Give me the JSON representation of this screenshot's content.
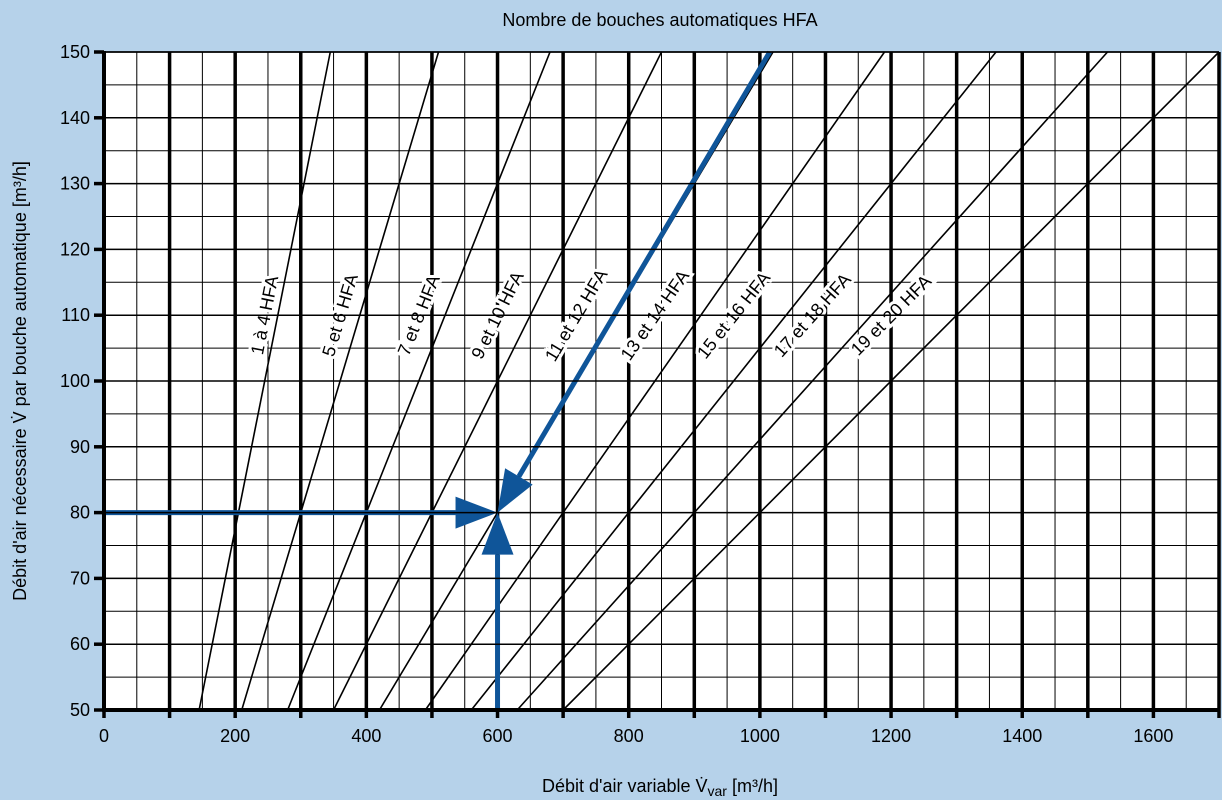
{
  "chart_data": {
    "type": "line",
    "title": "Nombre de bouches automatiques HFA",
    "xlabel": "Débit d'air variable V̇",
    "xlabel_sub": "var",
    "xlabel_unit": " [m³/h]",
    "ylabel": "Débit d'air nécessaire V̇ par bouche automatique [m³/h]",
    "xlim": [
      0,
      1700
    ],
    "ylim": [
      50,
      150
    ],
    "x_ticks": [
      0,
      200,
      400,
      600,
      800,
      1000,
      1200,
      1400,
      1600
    ],
    "x_tick_labels": [
      "0",
      "200",
      "400",
      "600",
      "800",
      "1000",
      "1200",
      "1400",
      "1600"
    ],
    "y_ticks": [
      50,
      60,
      70,
      80,
      90,
      100,
      110,
      120,
      130,
      140,
      150
    ],
    "y_tick_labels": [
      "50",
      "60",
      "70",
      "80",
      "90",
      "100",
      "110",
      "120",
      "130",
      "140",
      "150"
    ],
    "grid": true,
    "grid_minor_x": 50,
    "grid_minor_y": 5,
    "grid_major_x": 100,
    "colors": {
      "background": "#b6d2ea",
      "plot_background": "#ffffff",
      "lines": "#000000",
      "arrows": "#0f5599"
    },
    "series": [
      {
        "name": "1 à 4 HFA",
        "points": [
          [
            145,
            50
          ],
          [
            345,
            150
          ]
        ],
        "label_at": [
          245,
          110
        ]
      },
      {
        "name": "5 et 6 HFA",
        "points": [
          [
            210,
            50
          ],
          [
            510,
            150
          ]
        ],
        "label_at": [
          360,
          110
        ]
      },
      {
        "name": "7 et 8 HFA",
        "points": [
          [
            280,
            50
          ],
          [
            680,
            150
          ]
        ],
        "label_at": [
          480,
          110
        ]
      },
      {
        "name": "9 et 10 HFA",
        "points": [
          [
            350,
            50
          ],
          [
            850,
            150
          ]
        ],
        "label_at": [
          600,
          110
        ]
      },
      {
        "name": "11 et 12 HFA",
        "points": [
          [
            420,
            50
          ],
          [
            1020,
            150
          ]
        ],
        "label_at": [
          720,
          110
        ]
      },
      {
        "name": "13 et 14 HFA",
        "points": [
          [
            490,
            50
          ],
          [
            1190,
            150
          ]
        ],
        "label_at": [
          840,
          110
        ]
      },
      {
        "name": "15 et 16 HFA",
        "points": [
          [
            560,
            50
          ],
          [
            1360,
            150
          ]
        ],
        "label_at": [
          960,
          110
        ]
      },
      {
        "name": "17 et 18 HFA",
        "points": [
          [
            630,
            50
          ],
          [
            1530,
            150
          ]
        ],
        "label_at": [
          1080,
          110
        ]
      },
      {
        "name": "19 et 20 HFA",
        "points": [
          [
            700,
            50
          ],
          [
            1700,
            150
          ]
        ],
        "label_at": [
          1200,
          110
        ]
      }
    ],
    "annotations": {
      "arrows": [
        {
          "from": [
            0,
            80
          ],
          "to": [
            600,
            80
          ]
        },
        {
          "from": [
            600,
            50
          ],
          "to": [
            600,
            80
          ]
        },
        {
          "from": [
            1015,
            150
          ],
          "to": [
            600,
            80
          ]
        }
      ]
    }
  }
}
